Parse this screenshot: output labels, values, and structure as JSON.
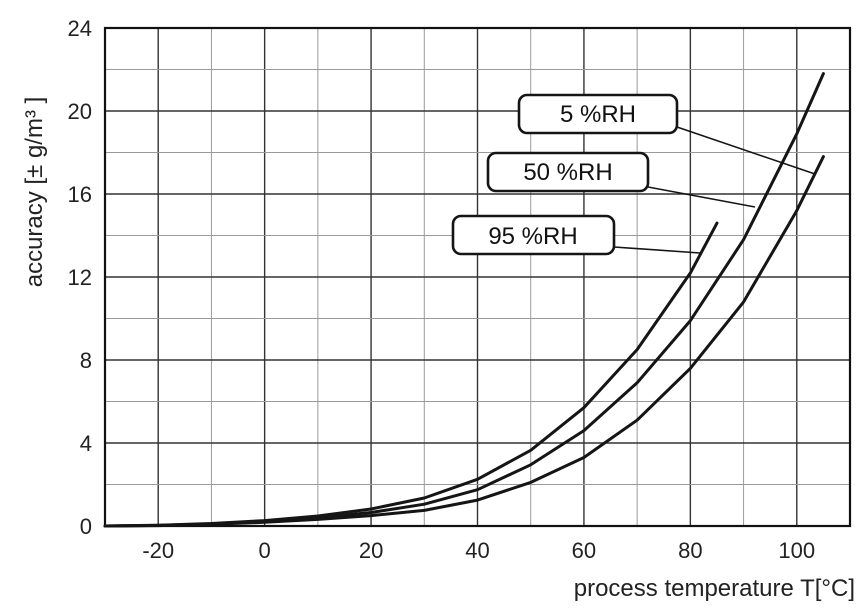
{
  "chart_data": {
    "type": "line",
    "title": "",
    "xlabel": "process temperature T[°C]",
    "ylabel": "accuracy  [± g/m³ ]",
    "xlim": [
      -30,
      110
    ],
    "ylim": [
      0,
      24
    ],
    "x_ticks": [
      -20,
      0,
      20,
      40,
      60,
      80,
      100
    ],
    "y_ticks": [
      0,
      4,
      8,
      12,
      16,
      20,
      24
    ],
    "x_tick_labels": [
      "-20",
      "0",
      "20",
      "40",
      "60",
      "80",
      "100"
    ],
    "y_tick_labels": [
      "0",
      "4",
      "8",
      "12",
      "16",
      "20",
      "24"
    ],
    "grid": true,
    "legend": "callouts",
    "series": [
      {
        "name": "5 %RH",
        "x": [
          -30,
          -20,
          -10,
          0,
          10,
          20,
          30,
          40,
          50,
          60,
          70,
          80,
          90,
          100,
          105
        ],
        "y": [
          0,
          0.02,
          0.08,
          0.18,
          0.32,
          0.5,
          0.75,
          1.25,
          2.1,
          3.3,
          5.1,
          7.6,
          10.8,
          15.2,
          17.8
        ]
      },
      {
        "name": "50 %RH",
        "x": [
          -30,
          -20,
          -10,
          0,
          10,
          20,
          30,
          40,
          50,
          60,
          70,
          80,
          90,
          100,
          105
        ],
        "y": [
          0,
          0.03,
          0.1,
          0.22,
          0.4,
          0.65,
          1.05,
          1.75,
          2.95,
          4.6,
          6.9,
          9.9,
          13.8,
          18.9,
          21.8
        ]
      },
      {
        "name": "95 %RH",
        "x": [
          -30,
          -20,
          -10,
          0,
          10,
          20,
          30,
          40,
          50,
          60,
          70,
          80,
          85
        ],
        "y": [
          0,
          0.04,
          0.12,
          0.26,
          0.48,
          0.82,
          1.35,
          2.25,
          3.65,
          5.7,
          8.5,
          12.2,
          14.6
        ]
      }
    ]
  }
}
